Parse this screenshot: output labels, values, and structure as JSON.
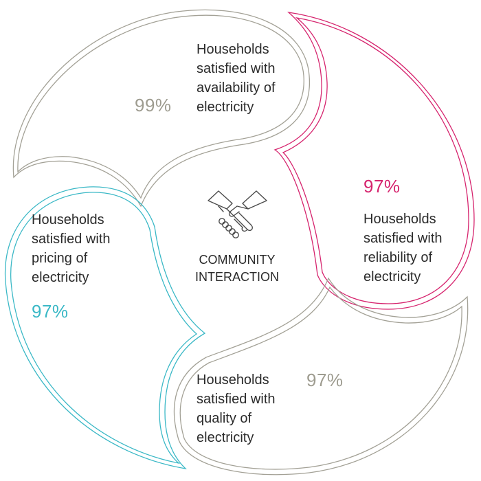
{
  "center": {
    "icon": "handshake-icon",
    "label_line1": "COMMUNITY",
    "label_line2": "INTERACTION"
  },
  "segments": [
    {
      "id": "availability",
      "percent": "99%",
      "lines": [
        "Households",
        "satisfied with",
        "availability of",
        "electricity"
      ],
      "color": "#9e9c90"
    },
    {
      "id": "reliability",
      "percent": "97%",
      "lines": [
        "Households",
        "satisfied with",
        "reliability of",
        "electricity"
      ],
      "color": "#d6246e"
    },
    {
      "id": "quality",
      "percent": "97%",
      "lines": [
        "Households",
        "satisfied with",
        "quality of",
        "electricity"
      ],
      "color": "#9e9c90"
    },
    {
      "id": "pricing",
      "percent": "97%",
      "lines": [
        "Households",
        "satisfied with",
        "pricing of",
        "electricity"
      ],
      "color": "#3ab8c6"
    }
  ]
}
